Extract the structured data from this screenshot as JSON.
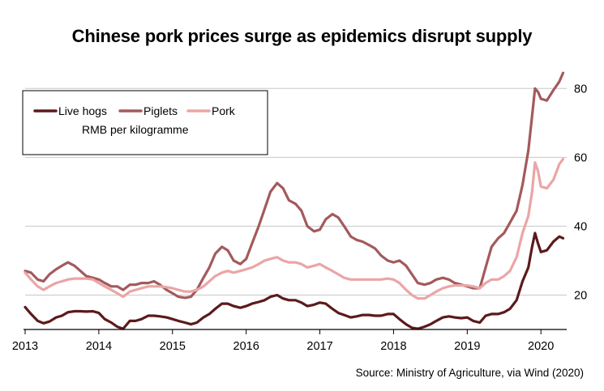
{
  "title": "Chinese pork prices surge as epidemics disrupt supply",
  "source": "Source: Ministry of Agriculture, via Wind (2020)",
  "chart_data": {
    "type": "line",
    "title": "Chinese pork prices surge as epidemics disrupt supply",
    "unit_label": "RMB per kilogramme",
    "xlim": [
      2013.0,
      2020.35
    ],
    "ylim": [
      10,
      85
    ],
    "x_ticks": [
      "2013",
      "2014",
      "2015",
      "2016",
      "2017",
      "2018",
      "2019",
      "2020"
    ],
    "y_ticks": [
      20,
      40,
      60,
      80
    ],
    "y_axis_position": "right",
    "grid": "horizontal",
    "legend_placement": "top-left",
    "series": [
      {
        "name": "Live hogs",
        "color": "#5c1a1b",
        "points": [
          [
            2013.0,
            16.5
          ],
          [
            2013.08,
            14.5
          ],
          [
            2013.17,
            12.5
          ],
          [
            2013.25,
            11.8
          ],
          [
            2013.33,
            12.3
          ],
          [
            2013.42,
            13.5
          ],
          [
            2013.5,
            14.0
          ],
          [
            2013.58,
            15.0
          ],
          [
            2013.67,
            15.3
          ],
          [
            2013.75,
            15.3
          ],
          [
            2013.83,
            15.2
          ],
          [
            2013.92,
            15.3
          ],
          [
            2014.0,
            14.8
          ],
          [
            2014.08,
            13.0
          ],
          [
            2014.17,
            12.0
          ],
          [
            2014.25,
            10.8
          ],
          [
            2014.33,
            10.2
          ],
          [
            2014.42,
            12.5
          ],
          [
            2014.5,
            12.5
          ],
          [
            2014.58,
            13.0
          ],
          [
            2014.67,
            14.0
          ],
          [
            2014.75,
            14.0
          ],
          [
            2014.83,
            13.8
          ],
          [
            2014.92,
            13.5
          ],
          [
            2015.0,
            13.0
          ],
          [
            2015.08,
            12.5
          ],
          [
            2015.17,
            12.0
          ],
          [
            2015.25,
            11.5
          ],
          [
            2015.33,
            12.0
          ],
          [
            2015.42,
            13.5
          ],
          [
            2015.5,
            14.5
          ],
          [
            2015.58,
            16.0
          ],
          [
            2015.67,
            17.5
          ],
          [
            2015.75,
            17.5
          ],
          [
            2015.83,
            16.8
          ],
          [
            2015.92,
            16.3
          ],
          [
            2016.0,
            16.8
          ],
          [
            2016.08,
            17.5
          ],
          [
            2016.17,
            18.0
          ],
          [
            2016.25,
            18.5
          ],
          [
            2016.33,
            19.5
          ],
          [
            2016.42,
            20.0
          ],
          [
            2016.5,
            19.0
          ],
          [
            2016.58,
            18.5
          ],
          [
            2016.67,
            18.5
          ],
          [
            2016.75,
            17.8
          ],
          [
            2016.83,
            16.8
          ],
          [
            2016.92,
            17.2
          ],
          [
            2017.0,
            17.8
          ],
          [
            2017.08,
            17.5
          ],
          [
            2017.17,
            16.0
          ],
          [
            2017.25,
            14.8
          ],
          [
            2017.33,
            14.2
          ],
          [
            2017.42,
            13.5
          ],
          [
            2017.5,
            13.8
          ],
          [
            2017.58,
            14.2
          ],
          [
            2017.67,
            14.2
          ],
          [
            2017.75,
            14.0
          ],
          [
            2017.83,
            14.0
          ],
          [
            2017.92,
            14.5
          ],
          [
            2018.0,
            14.5
          ],
          [
            2018.08,
            13.0
          ],
          [
            2018.17,
            11.5
          ],
          [
            2018.25,
            10.5
          ],
          [
            2018.33,
            10.2
          ],
          [
            2018.42,
            10.8
          ],
          [
            2018.5,
            11.5
          ],
          [
            2018.58,
            12.5
          ],
          [
            2018.67,
            13.5
          ],
          [
            2018.75,
            13.8
          ],
          [
            2018.83,
            13.5
          ],
          [
            2018.92,
            13.3
          ],
          [
            2019.0,
            13.5
          ],
          [
            2019.08,
            12.5
          ],
          [
            2019.17,
            12.0
          ],
          [
            2019.25,
            14.0
          ],
          [
            2019.33,
            14.5
          ],
          [
            2019.42,
            14.5
          ],
          [
            2019.5,
            15.0
          ],
          [
            2019.58,
            16.0
          ],
          [
            2019.67,
            18.5
          ],
          [
            2019.75,
            24.0
          ],
          [
            2019.83,
            28.0
          ],
          [
            2019.88,
            34.0
          ],
          [
            2019.92,
            38.0
          ],
          [
            2019.96,
            35.0
          ],
          [
            2020.0,
            32.5
          ],
          [
            2020.08,
            33.0
          ],
          [
            2020.17,
            35.5
          ],
          [
            2020.25,
            37.0
          ],
          [
            2020.3,
            36.5
          ]
        ]
      },
      {
        "name": "Piglets",
        "color": "#a35a5c",
        "points": [
          [
            2013.0,
            27.0
          ],
          [
            2013.08,
            26.5
          ],
          [
            2013.17,
            24.5
          ],
          [
            2013.25,
            24.0
          ],
          [
            2013.33,
            26.0
          ],
          [
            2013.42,
            27.5
          ],
          [
            2013.5,
            28.5
          ],
          [
            2013.58,
            29.5
          ],
          [
            2013.67,
            28.5
          ],
          [
            2013.75,
            27.0
          ],
          [
            2013.83,
            25.5
          ],
          [
            2013.92,
            25.0
          ],
          [
            2014.0,
            24.5
          ],
          [
            2014.08,
            23.5
          ],
          [
            2014.17,
            22.5
          ],
          [
            2014.25,
            22.5
          ],
          [
            2014.33,
            21.5
          ],
          [
            2014.42,
            23.0
          ],
          [
            2014.5,
            23.0
          ],
          [
            2014.58,
            23.5
          ],
          [
            2014.67,
            23.5
          ],
          [
            2014.75,
            24.0
          ],
          [
            2014.83,
            23.0
          ],
          [
            2014.92,
            21.5
          ],
          [
            2015.0,
            20.5
          ],
          [
            2015.08,
            19.5
          ],
          [
            2015.17,
            19.2
          ],
          [
            2015.25,
            19.5
          ],
          [
            2015.33,
            21.5
          ],
          [
            2015.42,
            25.0
          ],
          [
            2015.5,
            28.0
          ],
          [
            2015.58,
            32.0
          ],
          [
            2015.67,
            34.0
          ],
          [
            2015.75,
            33.0
          ],
          [
            2015.83,
            30.0
          ],
          [
            2015.92,
            29.0
          ],
          [
            2016.0,
            30.5
          ],
          [
            2016.08,
            35.0
          ],
          [
            2016.17,
            40.0
          ],
          [
            2016.25,
            45.0
          ],
          [
            2016.33,
            50.0
          ],
          [
            2016.42,
            52.5
          ],
          [
            2016.5,
            51.0
          ],
          [
            2016.58,
            47.5
          ],
          [
            2016.67,
            46.5
          ],
          [
            2016.75,
            44.5
          ],
          [
            2016.83,
            40.0
          ],
          [
            2016.92,
            38.5
          ],
          [
            2017.0,
            39.0
          ],
          [
            2017.08,
            42.0
          ],
          [
            2017.17,
            43.5
          ],
          [
            2017.25,
            42.5
          ],
          [
            2017.33,
            40.0
          ],
          [
            2017.42,
            37.0
          ],
          [
            2017.5,
            36.0
          ],
          [
            2017.58,
            35.5
          ],
          [
            2017.67,
            34.5
          ],
          [
            2017.75,
            33.5
          ],
          [
            2017.83,
            31.5
          ],
          [
            2017.92,
            30.0
          ],
          [
            2018.0,
            29.5
          ],
          [
            2018.08,
            30.0
          ],
          [
            2018.17,
            28.5
          ],
          [
            2018.25,
            26.0
          ],
          [
            2018.33,
            23.5
          ],
          [
            2018.42,
            23.0
          ],
          [
            2018.5,
            23.5
          ],
          [
            2018.58,
            24.5
          ],
          [
            2018.67,
            25.0
          ],
          [
            2018.75,
            24.5
          ],
          [
            2018.83,
            23.5
          ],
          [
            2018.92,
            23.0
          ],
          [
            2019.0,
            22.5
          ],
          [
            2019.08,
            22.0
          ],
          [
            2019.17,
            22.0
          ],
          [
            2019.25,
            28.0
          ],
          [
            2019.33,
            34.0
          ],
          [
            2019.42,
            36.5
          ],
          [
            2019.5,
            38.0
          ],
          [
            2019.58,
            41.0
          ],
          [
            2019.67,
            44.5
          ],
          [
            2019.75,
            52.0
          ],
          [
            2019.83,
            62.0
          ],
          [
            2019.88,
            72.0
          ],
          [
            2019.92,
            80.0
          ],
          [
            2019.96,
            79.0
          ],
          [
            2020.0,
            77.0
          ],
          [
            2020.08,
            76.5
          ],
          [
            2020.17,
            79.5
          ],
          [
            2020.25,
            82.0
          ],
          [
            2020.3,
            84.5
          ]
        ]
      },
      {
        "name": "Pork",
        "color": "#eba5a5",
        "points": [
          [
            2013.0,
            26.5
          ],
          [
            2013.08,
            24.5
          ],
          [
            2013.17,
            22.5
          ],
          [
            2013.25,
            21.5
          ],
          [
            2013.33,
            22.5
          ],
          [
            2013.42,
            23.5
          ],
          [
            2013.5,
            24.0
          ],
          [
            2013.58,
            24.5
          ],
          [
            2013.67,
            24.8
          ],
          [
            2013.75,
            24.8
          ],
          [
            2013.83,
            24.8
          ],
          [
            2013.92,
            24.5
          ],
          [
            2014.0,
            23.5
          ],
          [
            2014.08,
            22.5
          ],
          [
            2014.17,
            21.5
          ],
          [
            2014.25,
            20.5
          ],
          [
            2014.33,
            19.5
          ],
          [
            2014.42,
            21.0
          ],
          [
            2014.5,
            21.5
          ],
          [
            2014.58,
            22.0
          ],
          [
            2014.67,
            22.5
          ],
          [
            2014.75,
            22.5
          ],
          [
            2014.83,
            22.5
          ],
          [
            2014.92,
            22.3
          ],
          [
            2015.0,
            22.0
          ],
          [
            2015.08,
            21.5
          ],
          [
            2015.17,
            21.0
          ],
          [
            2015.25,
            21.0
          ],
          [
            2015.33,
            21.5
          ],
          [
            2015.42,
            22.5
          ],
          [
            2015.5,
            24.0
          ],
          [
            2015.58,
            25.5
          ],
          [
            2015.67,
            26.5
          ],
          [
            2015.75,
            27.0
          ],
          [
            2015.83,
            26.5
          ],
          [
            2015.92,
            27.0
          ],
          [
            2016.0,
            27.5
          ],
          [
            2016.08,
            28.0
          ],
          [
            2016.17,
            29.0
          ],
          [
            2016.25,
            30.0
          ],
          [
            2016.33,
            30.5
          ],
          [
            2016.42,
            31.0
          ],
          [
            2016.5,
            30.0
          ],
          [
            2016.58,
            29.5
          ],
          [
            2016.67,
            29.5
          ],
          [
            2016.75,
            29.0
          ],
          [
            2016.83,
            28.0
          ],
          [
            2016.92,
            28.5
          ],
          [
            2017.0,
            29.0
          ],
          [
            2017.08,
            28.0
          ],
          [
            2017.17,
            27.0
          ],
          [
            2017.25,
            26.0
          ],
          [
            2017.33,
            25.0
          ],
          [
            2017.42,
            24.5
          ],
          [
            2017.5,
            24.5
          ],
          [
            2017.58,
            24.5
          ],
          [
            2017.67,
            24.5
          ],
          [
            2017.75,
            24.5
          ],
          [
            2017.83,
            24.5
          ],
          [
            2017.92,
            24.8
          ],
          [
            2018.0,
            24.5
          ],
          [
            2018.08,
            23.5
          ],
          [
            2018.17,
            21.5
          ],
          [
            2018.25,
            20.0
          ],
          [
            2018.33,
            19.0
          ],
          [
            2018.42,
            19.0
          ],
          [
            2018.5,
            20.0
          ],
          [
            2018.58,
            21.0
          ],
          [
            2018.67,
            22.0
          ],
          [
            2018.75,
            22.5
          ],
          [
            2018.83,
            22.8
          ],
          [
            2018.92,
            22.8
          ],
          [
            2019.0,
            22.8
          ],
          [
            2019.08,
            22.5
          ],
          [
            2019.17,
            22.0
          ],
          [
            2019.25,
            23.5
          ],
          [
            2019.33,
            24.5
          ],
          [
            2019.42,
            24.5
          ],
          [
            2019.5,
            25.5
          ],
          [
            2019.58,
            27.0
          ],
          [
            2019.67,
            31.0
          ],
          [
            2019.75,
            38.0
          ],
          [
            2019.83,
            43.0
          ],
          [
            2019.88,
            50.0
          ],
          [
            2019.92,
            58.5
          ],
          [
            2019.96,
            56.0
          ],
          [
            2020.0,
            51.5
          ],
          [
            2020.08,
            51.0
          ],
          [
            2020.17,
            53.5
          ],
          [
            2020.25,
            58.0
          ],
          [
            2020.3,
            59.5
          ]
        ]
      }
    ]
  }
}
